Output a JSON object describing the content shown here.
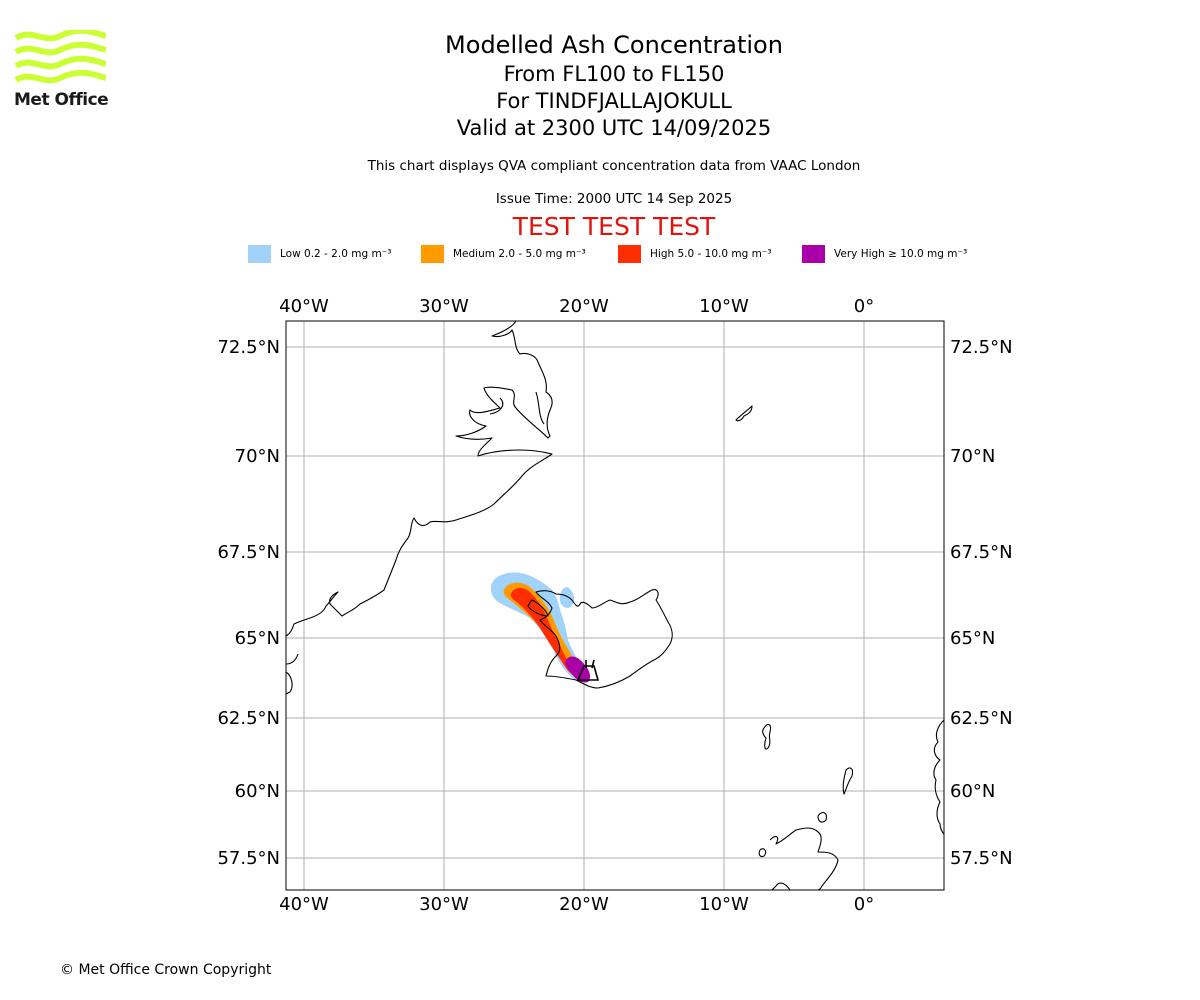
{
  "logo": {
    "text": "Met Office",
    "icon": "met-office-waves-logo",
    "color": "#ccff33"
  },
  "header": {
    "title": "Modelled Ash Concentration",
    "levels": "From FL100 to FL150",
    "volcano": "For TINDFJALLAJOKULL",
    "valid": "Valid at 2300 UTC 14/09/2025",
    "compliance": "This chart displays QVA compliant concentration data from VAAC London",
    "issue_time": "Issue Time: 2000 UTC 14 Sep 2025",
    "test_banner": "TEST TEST TEST"
  },
  "legend": [
    {
      "label": "Low 0.2 - 2.0 mg m⁻³",
      "color": "#a0d2fa"
    },
    {
      "label": "Medium 2.0 - 5.0 mg m⁻³",
      "color": "#ff9a00"
    },
    {
      "label": "High 5.0 - 10.0 mg m⁻³",
      "color": "#ff2e00"
    },
    {
      "label": "Very High ≥ 10.0 mg m⁻³",
      "color": "#aa00aa"
    }
  ],
  "map": {
    "longitude_labels": [
      "40°W",
      "30°W",
      "20°W",
      "10°W",
      "0°"
    ],
    "latitude_labels": [
      "72.5°N",
      "70°N",
      "67.5°N",
      "65°N",
      "62.5°N",
      "60°N",
      "57.5°N"
    ],
    "grid": true
  },
  "copyright": "© Met Office Crown Copyright"
}
